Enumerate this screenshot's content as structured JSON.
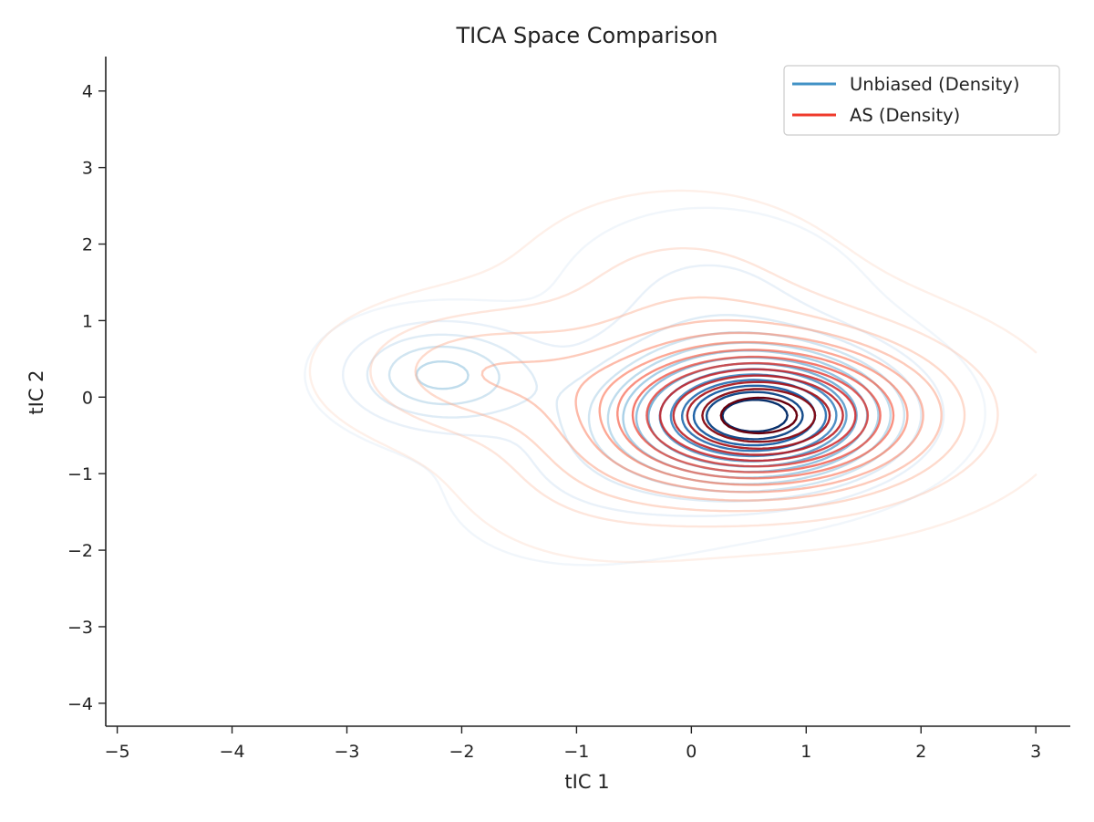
{
  "chart_data": {
    "type": "contour",
    "title": "TICA Space Comparison",
    "xlabel": "tIC 1",
    "ylabel": "tIC 2",
    "xlim": [
      -5.1,
      3.3
    ],
    "ylim": [
      -4.3,
      4.45
    ],
    "xticks": [
      -5,
      -4,
      -3,
      -2,
      -1,
      0,
      1,
      2,
      3
    ],
    "yticks": [
      -4,
      -3,
      -2,
      -1,
      0,
      1,
      2,
      3,
      4
    ],
    "grid": false,
    "legend": {
      "placement": "top-right"
    },
    "series": [
      {
        "name": "Unbiased (Density)",
        "legend_color": "#4292c6",
        "colormap": [
          "#deebf7",
          "#c6dbef",
          "#9ecae1",
          "#6baed6",
          "#4292c6",
          "#2171b5",
          "#08519c",
          "#08306b"
        ],
        "levels": 14,
        "components": [
          {
            "center": [
              0.6,
              -0.25
            ],
            "sigma": [
              0.75,
              0.55
            ],
            "weight": 0.55,
            "rho": 0.0
          },
          {
            "center": [
              -0.25,
              -0.45
            ],
            "sigma": [
              1.15,
              1.05
            ],
            "weight": 0.25,
            "rho": 0.35
          },
          {
            "center": [
              -2.2,
              0.3
            ],
            "sigma": [
              0.55,
              0.45
            ],
            "weight": 0.12,
            "rho": 0.0
          },
          {
            "center": [
              0.1,
              1.45
            ],
            "sigma": [
              0.8,
              0.7
            ],
            "weight": 0.08,
            "rho": 0.0
          }
        ]
      },
      {
        "name": "AS (Density)",
        "legend_color": "#ef3b2c",
        "colormap": [
          "#fee0d2",
          "#fcbba1",
          "#fc9272",
          "#fb6a4a",
          "#ef3b2c",
          "#cb181d",
          "#a50f15",
          "#67000d"
        ],
        "levels": 14,
        "components": [
          {
            "center": [
              0.6,
              -0.25
            ],
            "sigma": [
              0.85,
              0.6
            ],
            "weight": 0.5,
            "rho": 0.0
          },
          {
            "center": [
              0.75,
              -0.2
            ],
            "sigma": [
              1.35,
              0.9
            ],
            "weight": 0.25,
            "rho": 0.0
          },
          {
            "center": [
              -1.9,
              0.35
            ],
            "sigma": [
              0.75,
              0.55
            ],
            "weight": 0.1,
            "rho": 0.0
          },
          {
            "center": [
              -0.1,
              1.45
            ],
            "sigma": [
              0.9,
              0.8
            ],
            "weight": 0.1,
            "rho": 0.0
          },
          {
            "center": [
              -0.8,
              -1.1
            ],
            "sigma": [
              0.8,
              0.7
            ],
            "weight": 0.05,
            "rho": 0.0
          }
        ]
      }
    ]
  }
}
